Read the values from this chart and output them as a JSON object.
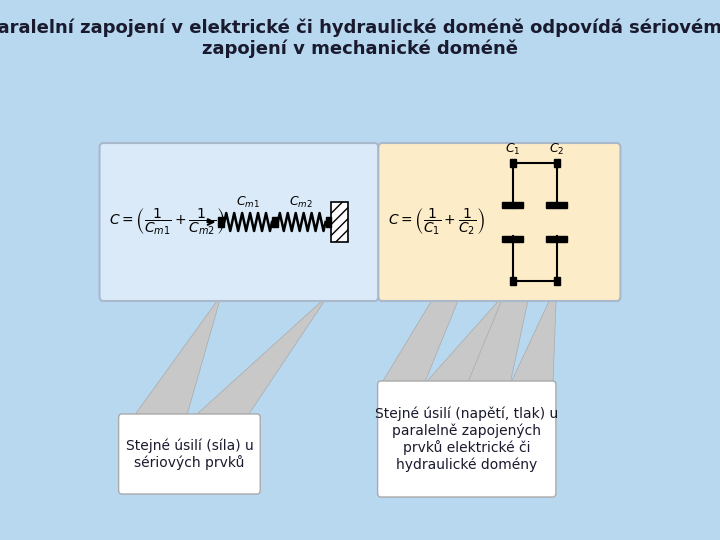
{
  "title": "Paralelní zapojení v elektrické či hydraulické doméně odpovídá sériovému\nzapojení v mechanické doméně",
  "title_fontsize": 13,
  "bg_color": "#b8d8f0",
  "left_box_color": "#daeaf8",
  "right_box_color": "#fdecc8",
  "left_callout": "Stejné úsilí (síla) u\nsériových prvků",
  "right_callout": "Stejné úsilí (napětí, tlak) u\nparalelně zapojených\nprvků elektrické či\nhydraulické domény",
  "text_color": "#1a1a2e",
  "box_border_color": "#aab8cc"
}
